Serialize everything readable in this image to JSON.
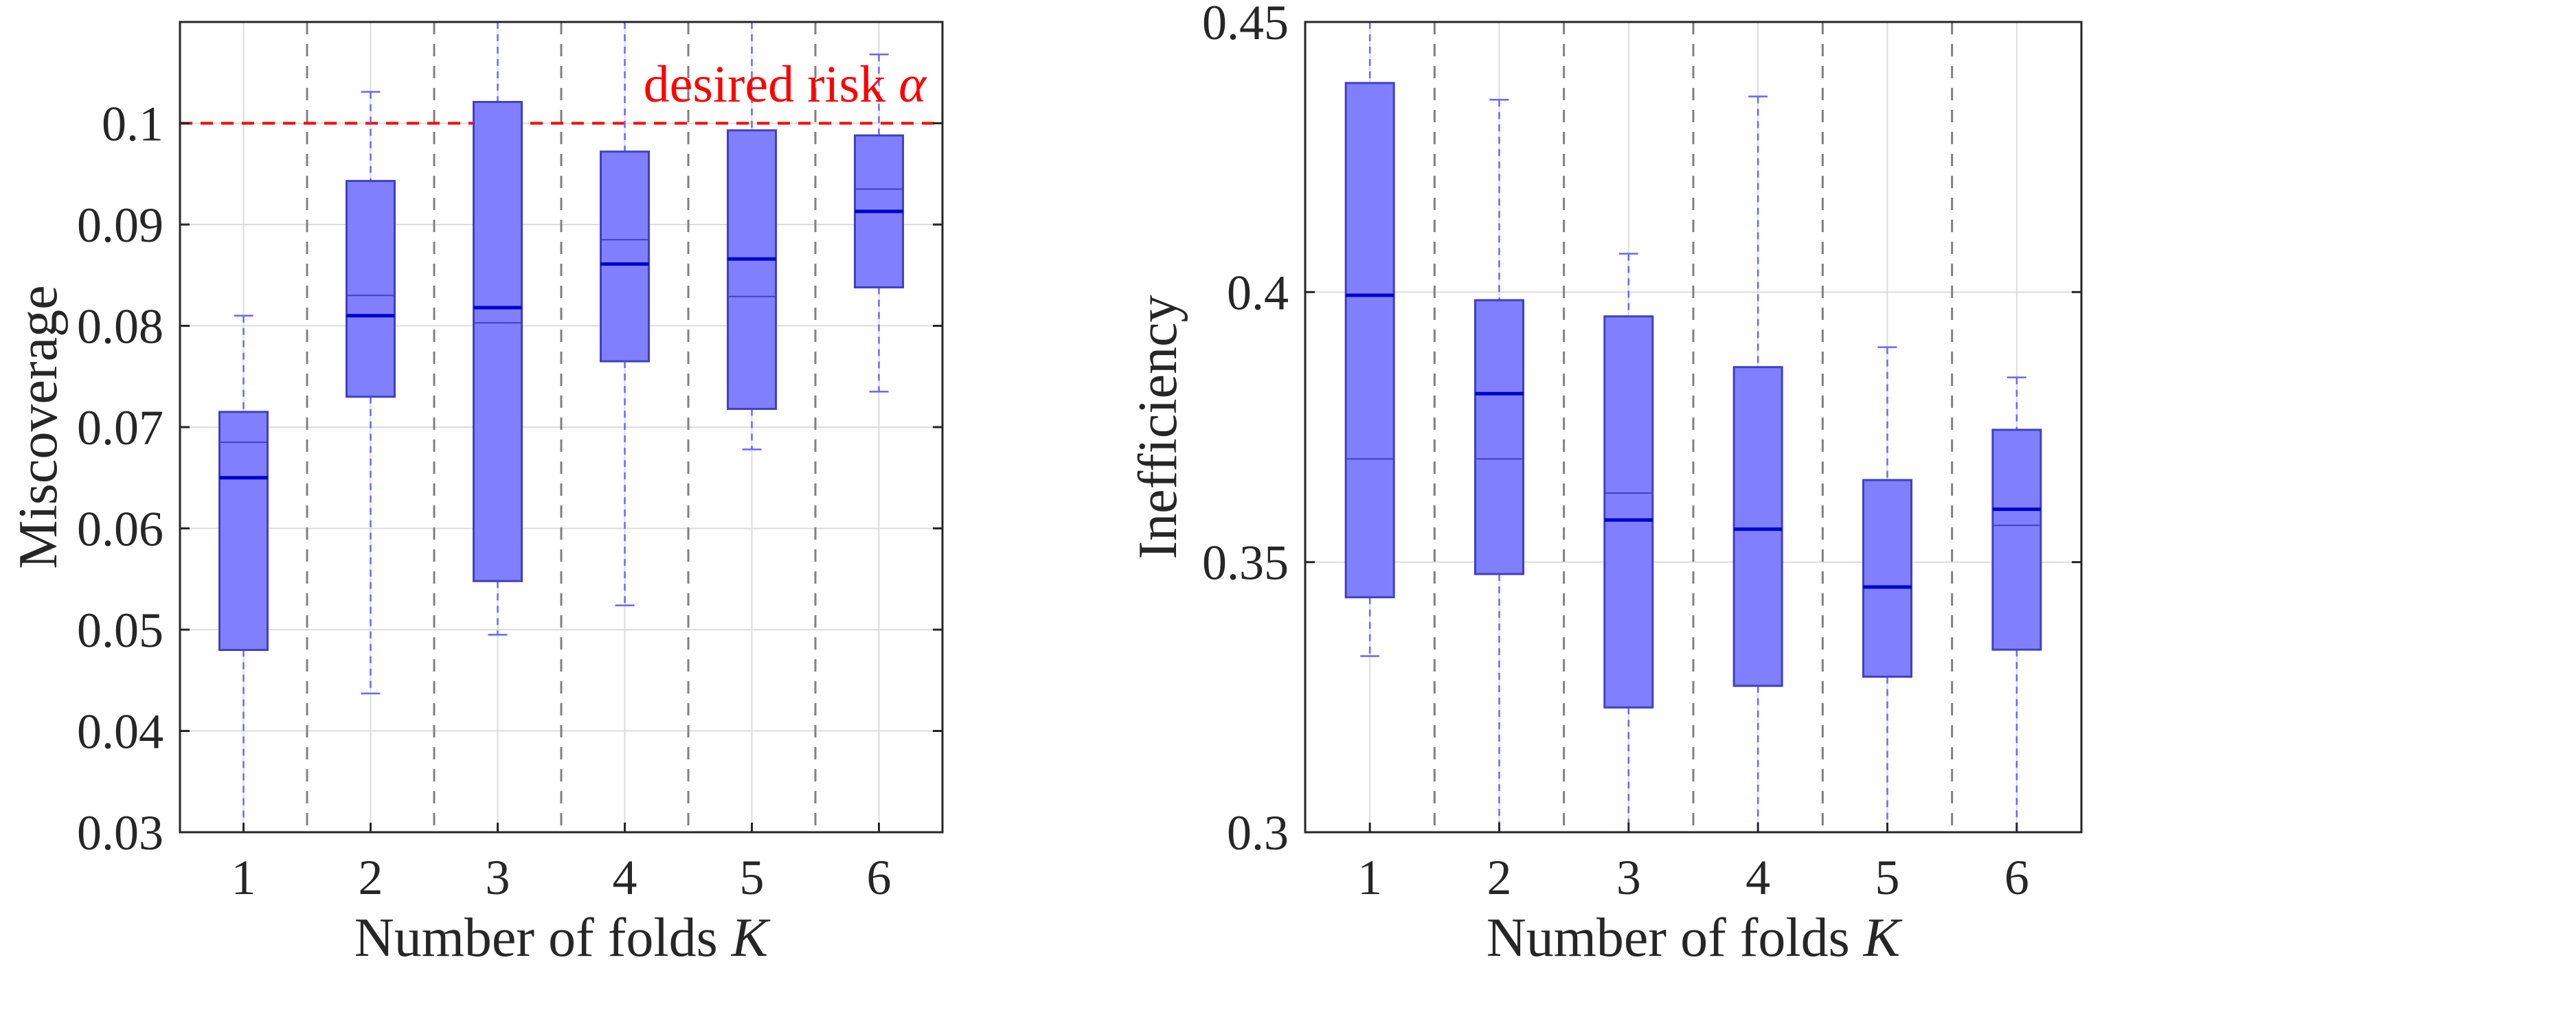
{
  "chart_data": [
    {
      "type": "box",
      "xlabel": "Number of folds",
      "xlabel_symbol": "K",
      "ylabel": "Miscoverage",
      "categories": [
        "1",
        "2",
        "3",
        "4",
        "5",
        "6"
      ],
      "ylim": [
        0.03,
        0.11
      ],
      "yticks": [
        0.03,
        0.04,
        0.05,
        0.06,
        0.07,
        0.08,
        0.09,
        0.1
      ],
      "ytick_labels": [
        "0.03",
        "0.04",
        "0.05",
        "0.06",
        "0.07",
        "0.08",
        "0.09",
        "0.1"
      ],
      "grid": true,
      "boxes": [
        {
          "category": "1",
          "whisker_low": 0.03,
          "q1": 0.048,
          "median": 0.065,
          "mean": 0.0685,
          "q3": 0.0715,
          "whisker_high": 0.081
        },
        {
          "category": "2",
          "whisker_low": 0.0437,
          "q1": 0.073,
          "median": 0.081,
          "mean": 0.083,
          "q3": 0.0943,
          "whisker_high": 0.1031
        },
        {
          "category": "3",
          "whisker_low": 0.0495,
          "q1": 0.0548,
          "median": 0.0818,
          "mean": 0.0803,
          "q3": 0.1021,
          "whisker_high": 0.11
        },
        {
          "category": "4",
          "whisker_low": 0.0524,
          "q1": 0.0765,
          "median": 0.0861,
          "mean": 0.0885,
          "q3": 0.0972,
          "whisker_high": 0.11
        },
        {
          "category": "5",
          "whisker_low": 0.0678,
          "q1": 0.0718,
          "median": 0.0866,
          "mean": 0.0829,
          "q3": 0.0993,
          "whisker_high": 0.11
        },
        {
          "category": "6",
          "whisker_low": 0.0735,
          "q1": 0.0838,
          "median": 0.0913,
          "mean": 0.0935,
          "q3": 0.0988,
          "whisker_high": 0.1068
        }
      ],
      "reference_line": {
        "value": 0.1,
        "label": "desired risk",
        "symbol": "α",
        "color": "#ff0000",
        "style": "dashed"
      },
      "colors": {
        "box_fill": "#8080ff",
        "box_edge": "#4040c0",
        "median": "#0000cc",
        "whisker": "#6666ff",
        "separator": "#808080"
      }
    },
    {
      "type": "box",
      "xlabel": "Number of folds",
      "xlabel_symbol": "K",
      "ylabel": "Inefficiency",
      "categories": [
        "1",
        "2",
        "3",
        "4",
        "5",
        "6"
      ],
      "ylim": [
        0.3,
        0.45
      ],
      "yticks": [
        0.3,
        0.35,
        0.4,
        0.45
      ],
      "ytick_labels": [
        "0.3",
        "0.35",
        "0.4",
        "0.45"
      ],
      "grid": true,
      "boxes": [
        {
          "category": "1",
          "whisker_low": 0.3326,
          "q1": 0.3435,
          "median": 0.3994,
          "mean": 0.3691,
          "q3": 0.4387,
          "whisker_high": 0.45
        },
        {
          "category": "2",
          "whisker_low": 0.3,
          "q1": 0.3478,
          "median": 0.3812,
          "mean": 0.3691,
          "q3": 0.3985,
          "whisker_high": 0.4356
        },
        {
          "category": "3",
          "whisker_low": 0.3,
          "q1": 0.3231,
          "median": 0.3578,
          "mean": 0.3628,
          "q3": 0.3955,
          "whisker_high": 0.4071
        },
        {
          "category": "4",
          "whisker_low": 0.3,
          "q1": 0.3271,
          "median": 0.3561,
          "mean": 0.3561,
          "q3": 0.3861,
          "whisker_high": 0.4362
        },
        {
          "category": "5",
          "whisker_low": 0.3,
          "q1": 0.3288,
          "median": 0.3454,
          "mean": 0.3454,
          "q3": 0.3652,
          "whisker_high": 0.3898
        },
        {
          "category": "6",
          "whisker_low": 0.3,
          "q1": 0.3338,
          "median": 0.3598,
          "mean": 0.3568,
          "q3": 0.3745,
          "whisker_high": 0.3842
        }
      ],
      "colors": {
        "box_fill": "#8080ff",
        "box_edge": "#4040c0",
        "median": "#0000cc",
        "whisker": "#6666ff",
        "separator": "#808080"
      }
    }
  ]
}
